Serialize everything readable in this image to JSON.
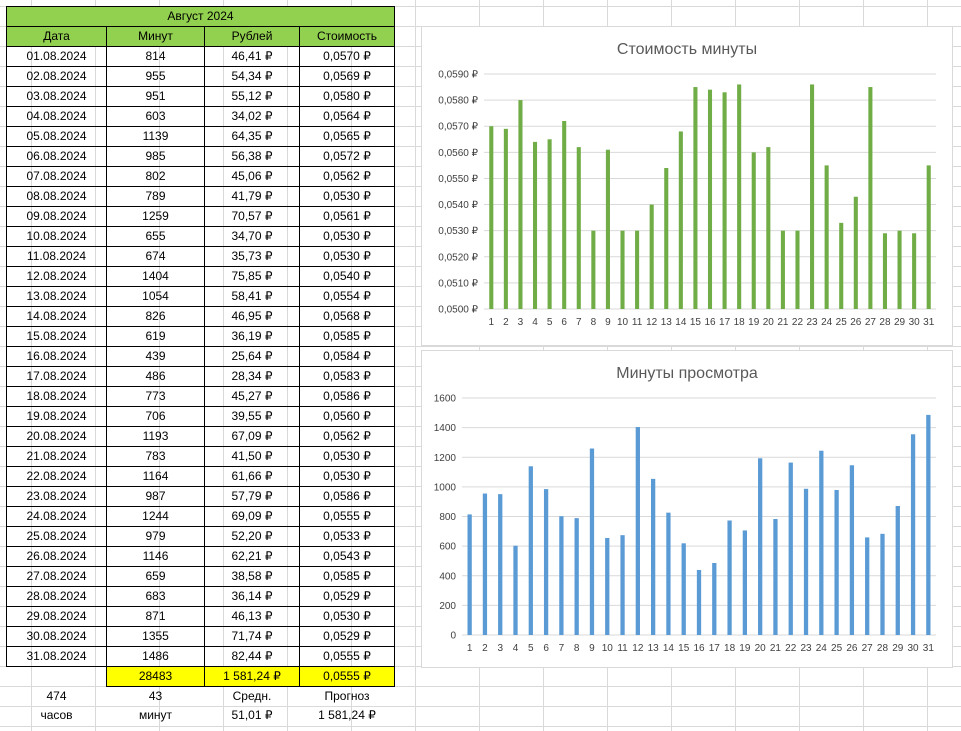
{
  "table": {
    "title": "Август 2024",
    "headers": [
      "Дата",
      "Минут",
      "Рублей",
      "Стоимость"
    ],
    "rows": [
      [
        "01.08.2024",
        "814",
        "46,41 ₽",
        "0,0570 ₽"
      ],
      [
        "02.08.2024",
        "955",
        "54,34 ₽",
        "0,0569 ₽"
      ],
      [
        "03.08.2024",
        "951",
        "55,12 ₽",
        "0,0580 ₽"
      ],
      [
        "04.08.2024",
        "603",
        "34,02 ₽",
        "0,0564 ₽"
      ],
      [
        "05.08.2024",
        "1139",
        "64,35 ₽",
        "0,0565 ₽"
      ],
      [
        "06.08.2024",
        "985",
        "56,38 ₽",
        "0,0572 ₽"
      ],
      [
        "07.08.2024",
        "802",
        "45,06 ₽",
        "0,0562 ₽"
      ],
      [
        "08.08.2024",
        "789",
        "41,79 ₽",
        "0,0530 ₽"
      ],
      [
        "09.08.2024",
        "1259",
        "70,57 ₽",
        "0,0561 ₽"
      ],
      [
        "10.08.2024",
        "655",
        "34,70 ₽",
        "0,0530 ₽"
      ],
      [
        "11.08.2024",
        "674",
        "35,73 ₽",
        "0,0530 ₽"
      ],
      [
        "12.08.2024",
        "1404",
        "75,85 ₽",
        "0,0540 ₽"
      ],
      [
        "13.08.2024",
        "1054",
        "58,41 ₽",
        "0,0554 ₽"
      ],
      [
        "14.08.2024",
        "826",
        "46,95 ₽",
        "0,0568 ₽"
      ],
      [
        "15.08.2024",
        "619",
        "36,19 ₽",
        "0,0585 ₽"
      ],
      [
        "16.08.2024",
        "439",
        "25,64 ₽",
        "0,0584 ₽"
      ],
      [
        "17.08.2024",
        "486",
        "28,34 ₽",
        "0,0583 ₽"
      ],
      [
        "18.08.2024",
        "773",
        "45,27 ₽",
        "0,0586 ₽"
      ],
      [
        "19.08.2024",
        "706",
        "39,55 ₽",
        "0,0560 ₽"
      ],
      [
        "20.08.2024",
        "1193",
        "67,09 ₽",
        "0,0562 ₽"
      ],
      [
        "21.08.2024",
        "783",
        "41,50 ₽",
        "0,0530 ₽"
      ],
      [
        "22.08.2024",
        "1164",
        "61,66 ₽",
        "0,0530 ₽"
      ],
      [
        "23.08.2024",
        "987",
        "57,79 ₽",
        "0,0586 ₽"
      ],
      [
        "24.08.2024",
        "1244",
        "69,09 ₽",
        "0,0555 ₽"
      ],
      [
        "25.08.2024",
        "979",
        "52,20 ₽",
        "0,0533 ₽"
      ],
      [
        "26.08.2024",
        "1146",
        "62,21 ₽",
        "0,0543 ₽"
      ],
      [
        "27.08.2024",
        "659",
        "38,58 ₽",
        "0,0585 ₽"
      ],
      [
        "28.08.2024",
        "683",
        "36,14 ₽",
        "0,0529 ₽"
      ],
      [
        "29.08.2024",
        "871",
        "46,13 ₽",
        "0,0530 ₽"
      ],
      [
        "30.08.2024",
        "1355",
        "71,74 ₽",
        "0,0529 ₽"
      ],
      [
        "31.08.2024",
        "1486",
        "82,44 ₽",
        "0,0555 ₽"
      ]
    ],
    "totals": [
      "",
      "28483",
      "1 581,24 ₽",
      "0,0555 ₽"
    ],
    "extra1": [
      "474",
      "43",
      "Средн.",
      "Прогноз"
    ],
    "extra2": [
      "часов",
      "минут",
      "51,01 ₽",
      "1 581,24 ₽"
    ]
  },
  "colors": {
    "header_fill": "#92d050",
    "total_fill": "#ffff00",
    "cost_bar": "#70ad47",
    "minutes_bar": "#5b9bd5"
  },
  "chart_data": [
    {
      "type": "bar",
      "title": "Стоимость минуты",
      "categories": [
        "1",
        "2",
        "3",
        "4",
        "5",
        "6",
        "7",
        "8",
        "9",
        "10",
        "11",
        "12",
        "13",
        "14",
        "15",
        "16",
        "17",
        "18",
        "19",
        "20",
        "21",
        "22",
        "23",
        "24",
        "25",
        "26",
        "27",
        "28",
        "29",
        "30",
        "31"
      ],
      "values": [
        0.057,
        0.0569,
        0.058,
        0.0564,
        0.0565,
        0.0572,
        0.0562,
        0.053,
        0.0561,
        0.053,
        0.053,
        0.054,
        0.0554,
        0.0568,
        0.0585,
        0.0584,
        0.0583,
        0.0586,
        0.056,
        0.0562,
        0.053,
        0.053,
        0.0586,
        0.0555,
        0.0533,
        0.0543,
        0.0585,
        0.0529,
        0.053,
        0.0529,
        0.0555
      ],
      "ylim": [
        0.05,
        0.059
      ],
      "yticks": [
        "0,0500 ₽",
        "0,0510 ₽",
        "0,0520 ₽",
        "0,0530 ₽",
        "0,0540 ₽",
        "0,0550 ₽",
        "0,0560 ₽",
        "0,0570 ₽",
        "0,0580 ₽",
        "0,0590 ₽"
      ],
      "grid": true,
      "color": "#70ad47"
    },
    {
      "type": "bar",
      "title": "Минуты просмотра",
      "categories": [
        "1",
        "2",
        "3",
        "4",
        "5",
        "6",
        "7",
        "8",
        "9",
        "10",
        "11",
        "12",
        "13",
        "14",
        "15",
        "16",
        "17",
        "18",
        "19",
        "20",
        "21",
        "22",
        "23",
        "24",
        "25",
        "26",
        "27",
        "28",
        "29",
        "30",
        "31"
      ],
      "values": [
        814,
        955,
        951,
        603,
        1139,
        985,
        802,
        789,
        1259,
        655,
        674,
        1404,
        1054,
        826,
        619,
        439,
        486,
        773,
        706,
        1193,
        783,
        1164,
        987,
        1244,
        979,
        1146,
        659,
        683,
        871,
        1355,
        1486
      ],
      "ylim": [
        0,
        1600
      ],
      "yticks": [
        "0",
        "200",
        "400",
        "600",
        "800",
        "1000",
        "1200",
        "1400",
        "1600"
      ],
      "grid": true,
      "color": "#5b9bd5"
    }
  ]
}
